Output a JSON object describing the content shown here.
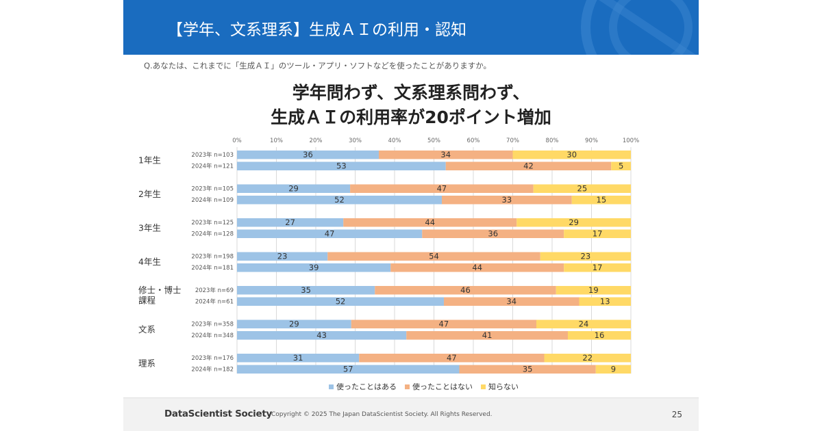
{
  "header": {
    "title": "【学年、文系理系】生成ＡＩの利用・認知"
  },
  "question": "Q.あなたは、これまでに「生成ＡＩ」のツール・アプリ・ソフトなどを使ったことがありますか。",
  "headline": {
    "line1": "学年問わず、文系理系問わず、",
    "line2": "生成ＡＩの利用率が20ポイント増加"
  },
  "colors": {
    "used": "#9dc3e6",
    "not_used": "#f4b183",
    "unknown": "#ffd966",
    "header_bg": "#1a6cbf"
  },
  "chart_data": {
    "type": "bar",
    "orientation": "horizontal-stacked-100",
    "xlim": [
      0,
      100
    ],
    "x_ticks": [
      "0%",
      "10%",
      "20%",
      "30%",
      "40%",
      "50%",
      "60%",
      "70%",
      "80%",
      "90%",
      "100%"
    ],
    "series_names": [
      "使ったことはある",
      "使ったことはない",
      "知らない"
    ],
    "groups": [
      {
        "label": "1年生",
        "rows": [
          {
            "label": "2023年 n=103",
            "values": [
              36,
              34,
              30
            ]
          },
          {
            "label": "2024年 n=121",
            "values": [
              53,
              42,
              5
            ]
          }
        ]
      },
      {
        "label": "2年生",
        "rows": [
          {
            "label": "2023年 n=105",
            "values": [
              29,
              47,
              25
            ]
          },
          {
            "label": "2024年 n=109",
            "values": [
              52,
              33,
              15
            ]
          }
        ]
      },
      {
        "label": "3年生",
        "rows": [
          {
            "label": "2023年 n=125",
            "values": [
              27,
              44,
              29
            ]
          },
          {
            "label": "2024年 n=128",
            "values": [
              47,
              36,
              17
            ]
          }
        ]
      },
      {
        "label": "4年生",
        "rows": [
          {
            "label": "2023年 n=198",
            "values": [
              23,
              54,
              23
            ]
          },
          {
            "label": "2024年 n=181",
            "values": [
              39,
              44,
              17
            ]
          }
        ]
      },
      {
        "label": "修士・博士課程",
        "label_lines": [
          "修士・博士",
          "課程"
        ],
        "rows": [
          {
            "label": "2023年 n=69",
            "values": [
              35,
              46,
              19
            ]
          },
          {
            "label": "2024年 n=61",
            "values": [
              52,
              34,
              13
            ]
          }
        ]
      },
      {
        "label": "文系",
        "rows": [
          {
            "label": "2023年 n=358",
            "values": [
              29,
              47,
              24
            ]
          },
          {
            "label": "2024年 n=348",
            "values": [
              43,
              41,
              16
            ]
          }
        ]
      },
      {
        "label": "理系",
        "rows": [
          {
            "label": "2023年 n=176",
            "values": [
              31,
              47,
              22
            ]
          },
          {
            "label": "2024年 n=182",
            "values": [
              57,
              35,
              9
            ]
          }
        ]
      }
    ]
  },
  "legend": {
    "used": "使ったことはある",
    "not_used": "使ったことはない",
    "unknown": "知らない"
  },
  "footer": {
    "logo": "DataScientist Society",
    "copyright": "Copyright © 2025  The Japan DataScientist Society. All Rights Reserved.",
    "page": "25"
  }
}
